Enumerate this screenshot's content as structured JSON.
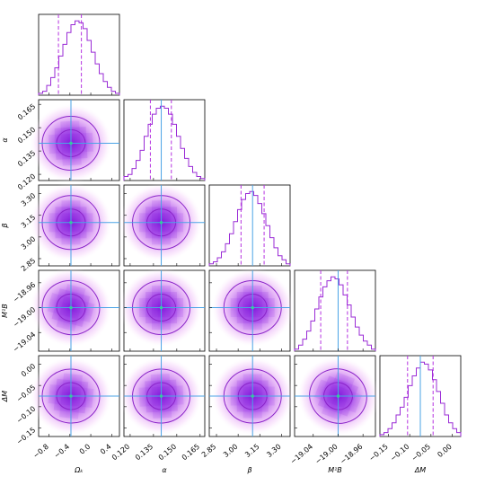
{
  "chart_data": {
    "type": "corner",
    "parameters": [
      {
        "key": "Om",
        "label": "Ωₖ",
        "ticks": [
          "−0.8",
          "−0.4",
          "0.0",
          "0.4"
        ],
        "tickvals": [
          -0.8,
          -0.4,
          0.0,
          0.4
        ],
        "range": [
          -1.0,
          0.55
        ],
        "truth": -0.38,
        "q16": -0.62,
        "q84": -0.18
      },
      {
        "key": "alpha",
        "label": "α",
        "ticks": [
          "0.120",
          "0.135",
          "0.150",
          "0.165"
        ],
        "tickvals": [
          0.12,
          0.135,
          0.15,
          0.165
        ],
        "range": [
          0.116,
          0.168
        ],
        "truth": 0.14,
        "q16": 0.133,
        "q84": 0.1465
      },
      {
        "key": "beta",
        "label": "β",
        "ticks": [
          "2.85",
          "3.00",
          "3.15",
          "3.30"
        ],
        "tickvals": [
          2.85,
          3.0,
          3.15,
          3.3
        ],
        "range": [
          2.8,
          3.36
        ],
        "truth": 3.1,
        "q16": 3.02,
        "q84": 3.18
      },
      {
        "key": "MB",
        "label": "M¹B",
        "ticks": [
          "−19.04",
          "−19.00",
          "−18.96"
        ],
        "tickvals": [
          -19.04,
          -19.0,
          -18.96
        ],
        "range": [
          -19.07,
          -18.94
        ],
        "truth": -19.0,
        "q16": -19.028,
        "q84": -18.985
      },
      {
        "key": "DM",
        "label": "ΔM",
        "ticks": [
          "−0.15",
          "−0.10",
          "−0.05",
          "0.00"
        ],
        "tickvals": [
          -0.15,
          -0.1,
          -0.05,
          0.0
        ],
        "range": [
          -0.17,
          0.02
        ],
        "truth": -0.075,
        "q16": -0.105,
        "q84": -0.045
      }
    ],
    "histograms": [
      [
        1,
        2,
        5,
        9,
        14,
        20,
        26,
        32,
        36,
        38,
        37,
        34,
        28,
        22,
        16,
        11,
        7,
        4,
        2,
        1
      ],
      [
        2,
        3,
        6,
        10,
        15,
        22,
        28,
        33,
        36,
        37,
        36,
        33,
        28,
        22,
        16,
        11,
        7,
        4,
        2,
        1
      ],
      [
        1,
        2,
        4,
        7,
        11,
        16,
        22,
        28,
        33,
        36,
        37,
        35,
        31,
        26,
        20,
        14,
        9,
        5,
        3,
        1
      ],
      [
        1,
        3,
        6,
        10,
        15,
        21,
        27,
        32,
        35,
        37,
        36,
        33,
        28,
        23,
        17,
        12,
        8,
        5,
        3,
        1
      ],
      [
        1,
        2,
        4,
        7,
        11,
        15,
        20,
        26,
        31,
        35,
        38,
        37,
        34,
        29,
        23,
        17,
        11,
        7,
        4,
        2
      ]
    ],
    "correlations": {
      "1-0": 0.05,
      "2-0": 0.0,
      "2-1": 0.0,
      "3-0": -0.25,
      "3-1": 0.0,
      "3-2": 0.0,
      "4-0": -0.1,
      "4-1": 0.05,
      "4-2": 0.0,
      "4-3": -0.35
    },
    "grid": false,
    "legend": "none"
  }
}
